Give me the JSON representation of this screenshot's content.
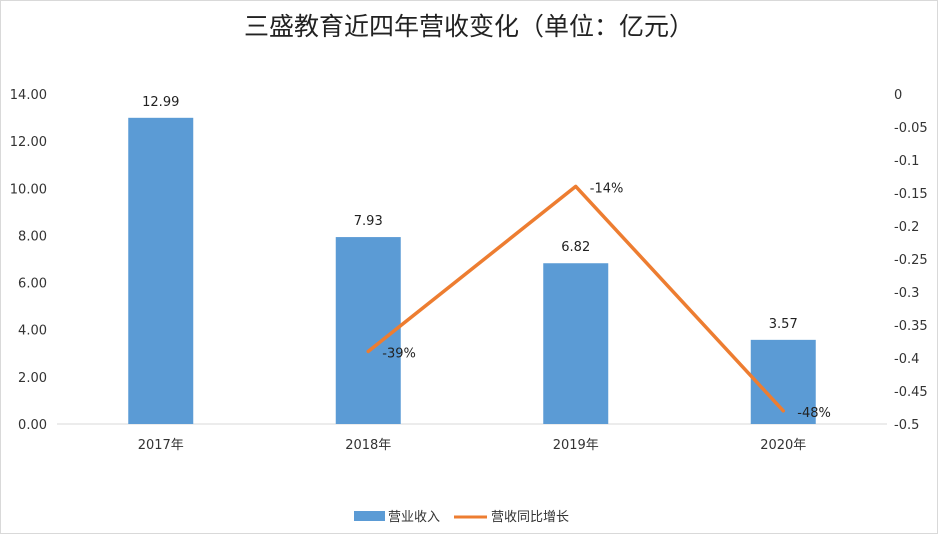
{
  "chart_data": {
    "type": "bar+line",
    "title": "三盛教育近四年营收变化（单位：亿元）",
    "categories": [
      "2017年",
      "2018年",
      "2019年",
      "2020年"
    ],
    "series": [
      {
        "name": "营业收入",
        "type": "bar",
        "axis": "left",
        "color": "#5b9bd5",
        "values": [
          12.99,
          7.93,
          6.82,
          3.57
        ],
        "labels": [
          "12.99",
          "7.93",
          "6.82",
          "3.57"
        ]
      },
      {
        "name": "营收同比增长",
        "type": "line",
        "axis": "right",
        "color": "#ed7d31",
        "values": [
          null,
          -0.39,
          -0.14,
          -0.48
        ],
        "labels": [
          "",
          "-39%",
          "-14%",
          "-48%"
        ]
      }
    ],
    "left_axis": {
      "ylim": [
        0,
        14
      ],
      "ticks": [
        "0.00",
        "2.00",
        "4.00",
        "6.00",
        "8.00",
        "10.00",
        "12.00",
        "14.00"
      ]
    },
    "right_axis": {
      "ylim": [
        -0.5,
        0
      ],
      "ticks": [
        "0",
        "-0.05",
        "-0.1",
        "-0.15",
        "-0.2",
        "-0.25",
        "-0.3",
        "-0.35",
        "-0.4",
        "-0.45",
        "-0.5"
      ]
    },
    "grid": false,
    "legend": "bottom"
  }
}
